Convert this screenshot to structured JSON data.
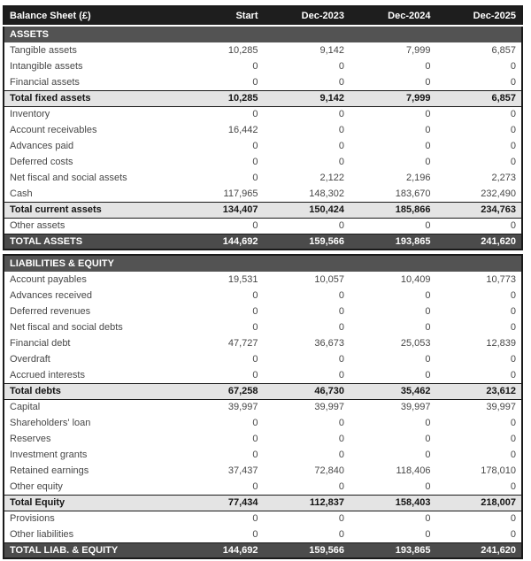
{
  "table": {
    "title": "Balance Sheet (£)",
    "currency": "£",
    "columns": [
      "Start",
      "Dec-2023",
      "Dec-2024",
      "Dec-2025"
    ],
    "colors": {
      "header_bg": "#1e1e1e",
      "section_bg": "#535353",
      "subtotal_bg": "#e4e4e4",
      "grand_total_bg": "#4b4b4b",
      "body_text": "#474747"
    },
    "sections": [
      {
        "name": "ASSETS",
        "rows": [
          {
            "type": "item",
            "label": "Tangible assets",
            "values": [
              "10,285",
              "9,142",
              "7,999",
              "6,857"
            ]
          },
          {
            "type": "item",
            "label": "Intangible assets",
            "values": [
              "0",
              "0",
              "0",
              "0"
            ]
          },
          {
            "type": "item",
            "label": "Financial assets",
            "values": [
              "0",
              "0",
              "0",
              "0"
            ]
          },
          {
            "type": "subtotal",
            "label": "Total fixed assets",
            "values": [
              "10,285",
              "9,142",
              "7,999",
              "6,857"
            ]
          },
          {
            "type": "item",
            "label": "Inventory",
            "values": [
              "0",
              "0",
              "0",
              "0"
            ]
          },
          {
            "type": "item",
            "label": "Account receivables",
            "values": [
              "16,442",
              "0",
              "0",
              "0"
            ]
          },
          {
            "type": "item",
            "label": "Advances paid",
            "values": [
              "0",
              "0",
              "0",
              "0"
            ]
          },
          {
            "type": "item",
            "label": "Deferred costs",
            "values": [
              "0",
              "0",
              "0",
              "0"
            ]
          },
          {
            "type": "item",
            "label": "Net fiscal and social assets",
            "values": [
              "0",
              "2,122",
              "2,196",
              "2,273"
            ]
          },
          {
            "type": "item",
            "label": "Cash",
            "values": [
              "117,965",
              "148,302",
              "183,670",
              "232,490"
            ]
          },
          {
            "type": "subtotal",
            "label": "Total current assets",
            "values": [
              "134,407",
              "150,424",
              "185,866",
              "234,763"
            ]
          },
          {
            "type": "item",
            "label": "Other assets",
            "values": [
              "0",
              "0",
              "0",
              "0"
            ]
          },
          {
            "type": "grandtotal",
            "label": "TOTAL ASSETS",
            "values": [
              "144,692",
              "159,566",
              "193,865",
              "241,620"
            ]
          }
        ]
      },
      {
        "name": "LIABILITIES & EQUITY",
        "rows": [
          {
            "type": "item",
            "label": "Account payables",
            "values": [
              "19,531",
              "10,057",
              "10,409",
              "10,773"
            ]
          },
          {
            "type": "item",
            "label": "Advances received",
            "values": [
              "0",
              "0",
              "0",
              "0"
            ]
          },
          {
            "type": "item",
            "label": "Deferred revenues",
            "values": [
              "0",
              "0",
              "0",
              "0"
            ]
          },
          {
            "type": "item",
            "label": "Net fiscal and social debts",
            "values": [
              "0",
              "0",
              "0",
              "0"
            ]
          },
          {
            "type": "item",
            "label": "Financial debt",
            "values": [
              "47,727",
              "36,673",
              "25,053",
              "12,839"
            ]
          },
          {
            "type": "item",
            "label": "Overdraft",
            "values": [
              "0",
              "0",
              "0",
              "0"
            ]
          },
          {
            "type": "item",
            "label": "Accrued interests",
            "values": [
              "0",
              "0",
              "0",
              "0"
            ]
          },
          {
            "type": "subtotal",
            "label": "Total debts",
            "values": [
              "67,258",
              "46,730",
              "35,462",
              "23,612"
            ]
          },
          {
            "type": "item",
            "label": "Capital",
            "values": [
              "39,997",
              "39,997",
              "39,997",
              "39,997"
            ]
          },
          {
            "type": "item",
            "label": "Shareholders' loan",
            "values": [
              "0",
              "0",
              "0",
              "0"
            ]
          },
          {
            "type": "item",
            "label": "Reserves",
            "values": [
              "0",
              "0",
              "0",
              "0"
            ]
          },
          {
            "type": "item",
            "label": "Investment grants",
            "values": [
              "0",
              "0",
              "0",
              "0"
            ]
          },
          {
            "type": "item",
            "label": "Retained earnings",
            "values": [
              "37,437",
              "72,840",
              "118,406",
              "178,010"
            ]
          },
          {
            "type": "item",
            "label": "Other equity",
            "values": [
              "0",
              "0",
              "0",
              "0"
            ]
          },
          {
            "type": "subtotal",
            "label": "Total Equity",
            "values": [
              "77,434",
              "112,837",
              "158,403",
              "218,007"
            ]
          },
          {
            "type": "item",
            "label": "Provisions",
            "values": [
              "0",
              "0",
              "0",
              "0"
            ]
          },
          {
            "type": "item",
            "label": "Other liabilities",
            "values": [
              "0",
              "0",
              "0",
              "0"
            ]
          },
          {
            "type": "grandtotal",
            "label": "TOTAL LIAB. & EQUITY",
            "values": [
              "144,692",
              "159,566",
              "193,865",
              "241,620"
            ]
          }
        ]
      }
    ]
  }
}
